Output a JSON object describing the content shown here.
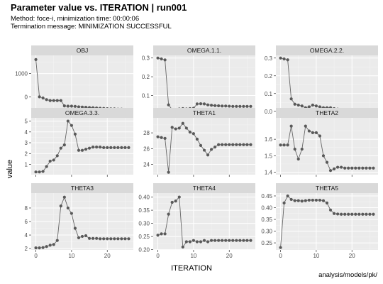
{
  "title": "Parameter value vs. ITERATION | run001",
  "subtitle_method": "Method: foce-i, minimization time: 00:00:06",
  "subtitle_termination": "Termination message: MINIMIZATION SUCCESSFUL",
  "caption": "analysis/models/pk/",
  "xlabel": "ITERATION",
  "ylabel": "value",
  "colors": {
    "panel_bg": "#ebebeb",
    "strip_bg": "#d9d9d9",
    "grid_major": "#ffffff",
    "grid_minor": "#f4f4f4",
    "line": "#666666",
    "point": "#595959"
  },
  "chart_data": {
    "type": "line",
    "facet_layout": "3x3",
    "grid": true,
    "legend": "none",
    "x": [
      0,
      1,
      2,
      3,
      4,
      5,
      6,
      7,
      8,
      9,
      10,
      11,
      12,
      13,
      14,
      15,
      16,
      17,
      18,
      19,
      20,
      21,
      22,
      23,
      24,
      25,
      26
    ],
    "x_ticks": [
      0,
      10,
      20
    ],
    "xlim": [
      -1.3,
      27.3
    ],
    "panels": [
      {
        "name": "OBJ",
        "values": [
          1600,
          0,
          -50,
          -120,
          -160,
          -160,
          -160,
          -160,
          -390,
          -400,
          -400,
          -410,
          -430,
          -440,
          -450,
          -460,
          -470,
          -480,
          -490,
          -500,
          -510,
          -520,
          -520,
          -530,
          -530,
          -540,
          -540
        ],
        "ylim": [
          -660,
          1780
        ],
        "y_ticks": [
          0,
          1000
        ],
        "y_tick_labels": [
          "0",
          "1000"
        ]
      },
      {
        "name": "OMEGA.1.1.",
        "values": [
          0.3,
          0.295,
          0.29,
          0.05,
          0.025,
          0.026,
          0.028,
          0.03,
          0.028,
          0.03,
          0.032,
          0.055,
          0.056,
          0.055,
          0.05,
          0.048,
          0.046,
          0.045,
          0.044,
          0.044,
          0.043,
          0.042,
          0.042,
          0.042,
          0.042,
          0.042,
          0.042
        ],
        "ylim": [
          0.011,
          0.314
        ],
        "y_ticks": [
          0.1,
          0.2,
          0.3
        ],
        "y_tick_labels": [
          "0.1",
          "0.2",
          "0.3"
        ]
      },
      {
        "name": "OMEGA.2.2.",
        "values": [
          0.3,
          0.295,
          0.29,
          0.07,
          0.04,
          0.035,
          0.03,
          0.02,
          0.025,
          0.035,
          0.03,
          0.025,
          0.02,
          0.02,
          0.02,
          0.015,
          0.012,
          0.01,
          0.01,
          0.01,
          0.01,
          0.01,
          0.01,
          0.01,
          0.01,
          0.01,
          0.01
        ],
        "ylim": [
          -0.005,
          0.315
        ],
        "y_ticks": [
          0.0,
          0.1,
          0.2,
          0.3
        ],
        "y_tick_labels": [
          "0.0",
          "0.1",
          "0.2",
          "0.3"
        ]
      },
      {
        "name": "OMEGA.3.3.",
        "values": [
          0.3,
          0.3,
          0.35,
          0.8,
          1.3,
          1.4,
          1.8,
          2.5,
          2.8,
          5.0,
          4.6,
          3.8,
          2.3,
          2.3,
          2.4,
          2.5,
          2.6,
          2.6,
          2.6,
          2.55,
          2.55,
          2.55,
          2.55,
          2.55,
          2.55,
          2.55,
          2.55
        ],
        "ylim": [
          0.05,
          5.3
        ],
        "y_ticks": [
          1,
          2,
          3,
          4,
          5
        ],
        "y_tick_labels": [
          "1",
          "2",
          "3",
          "4",
          "5"
        ]
      },
      {
        "name": "THETA1",
        "values": [
          27.5,
          27.4,
          27.3,
          23.0,
          28.7,
          28.5,
          28.6,
          29.2,
          28.6,
          28.1,
          27.9,
          27.2,
          26.4,
          25.8,
          25.2,
          25.9,
          26.2,
          26.5,
          26.5,
          26.5,
          26.5,
          26.5,
          26.5,
          26.5,
          26.5,
          26.5,
          26.5
        ],
        "ylim": [
          22.7,
          29.9
        ],
        "y_ticks": [
          24,
          26,
          28
        ],
        "y_tick_labels": [
          "24",
          "26",
          "28"
        ]
      },
      {
        "name": "THETA2",
        "values": [
          1.565,
          1.565,
          1.565,
          1.68,
          1.54,
          1.48,
          1.54,
          1.68,
          1.65,
          1.64,
          1.64,
          1.62,
          1.5,
          1.46,
          1.41,
          1.42,
          1.43,
          1.43,
          1.425,
          1.425,
          1.425,
          1.425,
          1.425,
          1.425,
          1.425,
          1.425,
          1.425
        ],
        "ylim": [
          1.385,
          1.73
        ],
        "y_ticks": [
          1.4,
          1.5,
          1.6
        ],
        "y_tick_labels": [
          "1.4",
          "1.5",
          "1.6"
        ]
      },
      {
        "name": "THETA3",
        "values": [
          2.1,
          2.1,
          2.15,
          2.3,
          2.5,
          2.6,
          3.2,
          8.3,
          9.6,
          8.0,
          7.2,
          5.0,
          3.6,
          3.8,
          3.9,
          3.5,
          3.5,
          3.5,
          3.45,
          3.45,
          3.45,
          3.45,
          3.45,
          3.45,
          3.45,
          3.45,
          3.45
        ],
        "ylim": [
          1.8,
          10.2
        ],
        "y_ticks": [
          2,
          4,
          6,
          8
        ],
        "y_tick_labels": [
          "2",
          "4",
          "6",
          "8"
        ]
      },
      {
        "name": "THETA4",
        "values": [
          0.255,
          0.26,
          0.26,
          0.335,
          0.38,
          0.385,
          0.4,
          0.21,
          0.23,
          0.23,
          0.235,
          0.23,
          0.23,
          0.235,
          0.23,
          0.235,
          0.235,
          0.235,
          0.235,
          0.235,
          0.235,
          0.235,
          0.235,
          0.235,
          0.235,
          0.235,
          0.235
        ],
        "ylim": [
          0.199,
          0.415
        ],
        "y_ticks": [
          0.2,
          0.25,
          0.3,
          0.35,
          0.4
        ],
        "y_tick_labels": [
          "0.20",
          "0.25",
          "0.30",
          "0.35",
          "0.40"
        ]
      },
      {
        "name": "THETA5",
        "values": [
          0.23,
          0.42,
          0.45,
          0.435,
          0.43,
          0.43,
          0.428,
          0.43,
          0.432,
          0.432,
          0.432,
          0.432,
          0.43,
          0.42,
          0.39,
          0.375,
          0.373,
          0.372,
          0.372,
          0.372,
          0.372,
          0.372,
          0.372,
          0.372,
          0.372,
          0.372,
          0.372
        ],
        "ylim": [
          0.22,
          0.462
        ],
        "y_ticks": [
          0.25,
          0.3,
          0.35,
          0.4,
          0.45
        ],
        "y_tick_labels": [
          "0.25",
          "0.30",
          "0.35",
          "0.40",
          "0.45"
        ]
      }
    ]
  }
}
